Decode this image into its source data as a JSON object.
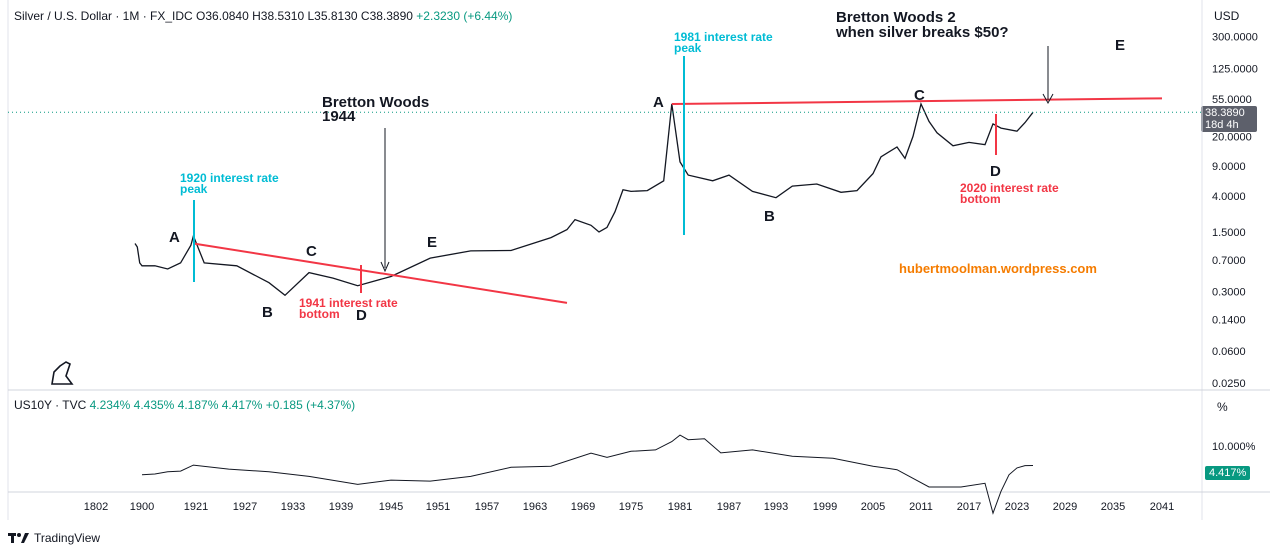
{
  "header": {
    "symbol": "Silver / U.S. Dollar · 1M · FX_IDC",
    "open": "O36.0840",
    "high": "H38.5310",
    "low": "L35.8130",
    "close": "C38.3890",
    "change": "+2.3230 (+6.44%)"
  },
  "currency_button": "USD",
  "percent_button": "%",
  "price_badge": {
    "value": "38.3890",
    "countdown": "18d 4h"
  },
  "lower_badge": "4.417%",
  "lower_header": {
    "symbol": "US10Y · TVC",
    "values": "4.234%  4.435%  4.187%  4.417%  +0.185 (+4.37%)"
  },
  "footer": {
    "brand": "TradingView"
  },
  "colors": {
    "red": "#f23645",
    "cyan": "#00bcd4",
    "orange": "#f57c00",
    "green": "#089981",
    "badge_gray": "#5d606b",
    "text": "#131722"
  },
  "chart_data": [
    {
      "type": "line",
      "title": "Silver / U.S. Dollar · 1M · FX_IDC",
      "scale": "log",
      "ylim": [
        0.022,
        550
      ],
      "y_ticks": [
        "300.0000",
        "125.0000",
        "55.0000",
        "20.0000",
        "9.0000",
        "4.0000",
        "1.5000",
        "0.7000",
        "0.3000",
        "0.1400",
        "0.0600",
        "0.0250"
      ],
      "x_ticks": [
        "1802",
        "1900",
        "1921",
        "1927",
        "1933",
        "1939",
        "1945",
        "1951",
        "1957",
        "1963",
        "1969",
        "1975",
        "1981",
        "1987",
        "1993",
        "1999",
        "2005",
        "2011",
        "2017",
        "2023",
        "2029",
        "2035",
        "2041"
      ],
      "series": [
        {
          "name": "Silver price (USD)",
          "x": [
            1885,
            1890,
            1895,
            1900,
            1905,
            1910,
            1915,
            1919,
            1920,
            1922,
            1926,
            1930,
            1932,
            1935,
            1938,
            1941,
            1945,
            1950,
            1955,
            1960,
            1965,
            1967,
            1968,
            1970,
            1971,
            1972,
            1973,
            1974,
            1975,
            1977,
            1979,
            1980,
            1981,
            1982,
            1985,
            1987,
            1990,
            1993,
            1995,
            1998,
            2001,
            2003,
            2005,
            2006,
            2008,
            2009,
            2010,
            2011,
            2012,
            2013,
            2015,
            2017,
            2019,
            2020,
            2021,
            2023,
            2024,
            2025
          ],
          "values": [
            1.1,
            1.0,
            0.65,
            0.6,
            0.6,
            0.55,
            0.65,
            1.05,
            1.35,
            0.65,
            0.6,
            0.38,
            0.27,
            0.5,
            0.43,
            0.35,
            0.45,
            0.74,
            0.9,
            0.91,
            1.29,
            1.6,
            2.1,
            1.8,
            1.5,
            1.7,
            2.6,
            4.7,
            4.5,
            4.6,
            6.0,
            48.0,
            10.0,
            7.0,
            6.0,
            7.0,
            4.5,
            3.8,
            5.2,
            5.5,
            4.4,
            4.6,
            7.3,
            11.5,
            15.0,
            11.0,
            20.0,
            48.0,
            30.0,
            22.0,
            15.5,
            17.0,
            16.0,
            28.0,
            25.0,
            23.0,
            29.0,
            38.389
          ]
        }
      ],
      "annotations": [
        "1920 interest rate\npeak",
        "1941 interest rate\nbottom",
        "1981 interest rate\npeak",
        "2020 interest rate\nbottom",
        "Bretton Woods\n1944",
        "Bretton Woods 2\nwhen silver breaks $50?",
        "hubertmoolman.wordpress.com",
        "A",
        "B",
        "C",
        "D",
        "E",
        "A",
        "B",
        "C",
        "D",
        "E"
      ],
      "trendlines": [
        {
          "from": [
            1920,
            1.1
          ],
          "to": [
            1967,
            0.22
          ]
        },
        {
          "from": [
            1980,
            48.0
          ],
          "to": [
            2041,
            56.0
          ]
        }
      ],
      "current_price": 38.389
    },
    {
      "type": "line",
      "title": "US10Y · TVC",
      "scale": "log",
      "ylim": [
        1.3,
        20
      ],
      "y_ticks": [
        "10.000%"
      ],
      "series": [
        {
          "name": "US 10Y yield (%)",
          "x": [
            1900,
            1905,
            1910,
            1915,
            1920,
            1925,
            1930,
            1935,
            1941,
            1945,
            1950,
            1955,
            1960,
            1965,
            1970,
            1972,
            1975,
            1978,
            1980,
            1981,
            1982,
            1984,
            1986,
            1990,
            1995,
            2000,
            2005,
            2008,
            2012,
            2016,
            2019,
            2020,
            2021,
            2022,
            2023,
            2024,
            2025
          ],
          "values": [
            3.0,
            3.1,
            3.4,
            3.5,
            4.5,
            3.8,
            3.4,
            2.8,
            2.0,
            2.4,
            2.3,
            2.8,
            4.1,
            4.3,
            7.4,
            6.2,
            8.0,
            8.5,
            12.0,
            15.8,
            13.0,
            13.5,
            7.5,
            8.5,
            6.5,
            6.0,
            4.3,
            3.7,
            1.8,
            1.8,
            2.1,
            0.6,
            1.5,
            3.0,
            4.0,
            4.4,
            4.417
          ]
        }
      ],
      "current_value": 4.417
    }
  ]
}
